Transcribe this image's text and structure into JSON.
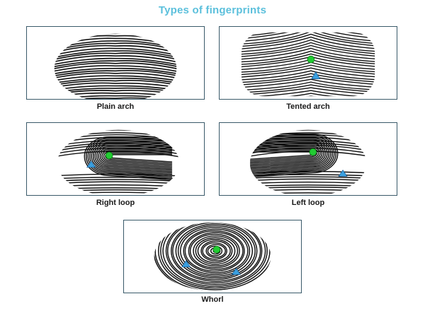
{
  "title": "Types of fingerprints",
  "colors": {
    "title": "#5cc0dc",
    "core": "#22cc33",
    "delta": "#3aa0e0",
    "ridge": "#111111"
  },
  "panels": [
    {
      "id": "plain",
      "caption": "Plain arch",
      "pattern": "arch",
      "cores": 0,
      "deltas": 0
    },
    {
      "id": "tented",
      "caption": "Tented arch",
      "pattern": "tented",
      "cores": 1,
      "deltas": 1
    },
    {
      "id": "right",
      "caption": "Right loop",
      "pattern": "loop",
      "cores": 1,
      "deltas": 1
    },
    {
      "id": "left",
      "caption": "Left loop",
      "pattern": "loop",
      "cores": 1,
      "deltas": 1
    },
    {
      "id": "whorl",
      "caption": "Whorl",
      "pattern": "whorl",
      "cores": 1,
      "deltas": 2
    }
  ]
}
